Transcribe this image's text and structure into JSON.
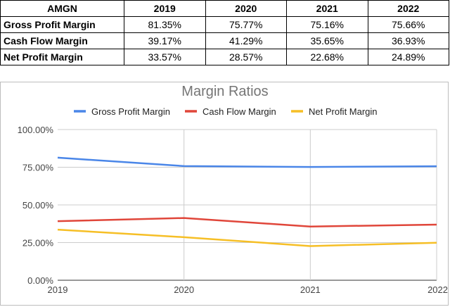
{
  "table": {
    "headers": [
      "AMGN",
      "2019",
      "2020",
      "2021",
      "2022"
    ],
    "rows": [
      {
        "label": "Gross Profit Margin",
        "values": [
          "81.35%",
          "75.77%",
          "75.16%",
          "75.66%"
        ]
      },
      {
        "label": "Cash Flow Margin",
        "values": [
          "39.17%",
          "41.29%",
          "35.65%",
          "36.93%"
        ]
      },
      {
        "label": "Net Profit Margin",
        "values": [
          "33.57%",
          "28.57%",
          "22.68%",
          "24.89%"
        ]
      }
    ]
  },
  "chart_data": {
    "type": "line",
    "title": "Margin Ratios",
    "categories": [
      "2019",
      "2020",
      "2021",
      "2022"
    ],
    "series": [
      {
        "name": "Gross Profit Margin",
        "values": [
          81.35,
          75.77,
          75.16,
          75.66
        ],
        "color": "#4a86e8"
      },
      {
        "name": "Cash Flow Margin",
        "values": [
          39.17,
          41.29,
          35.65,
          36.93
        ],
        "color": "#e0463a"
      },
      {
        "name": "Net Profit Margin",
        "values": [
          33.57,
          28.57,
          22.68,
          24.89
        ],
        "color": "#f6bf26"
      }
    ],
    "ylim": [
      0,
      100
    ],
    "yticks": [
      0,
      25,
      50,
      75,
      100
    ],
    "ytick_labels": [
      "0.00%",
      "25.00%",
      "50.00%",
      "75.00%",
      "100.00%"
    ],
    "grid": true,
    "legend": "top"
  }
}
